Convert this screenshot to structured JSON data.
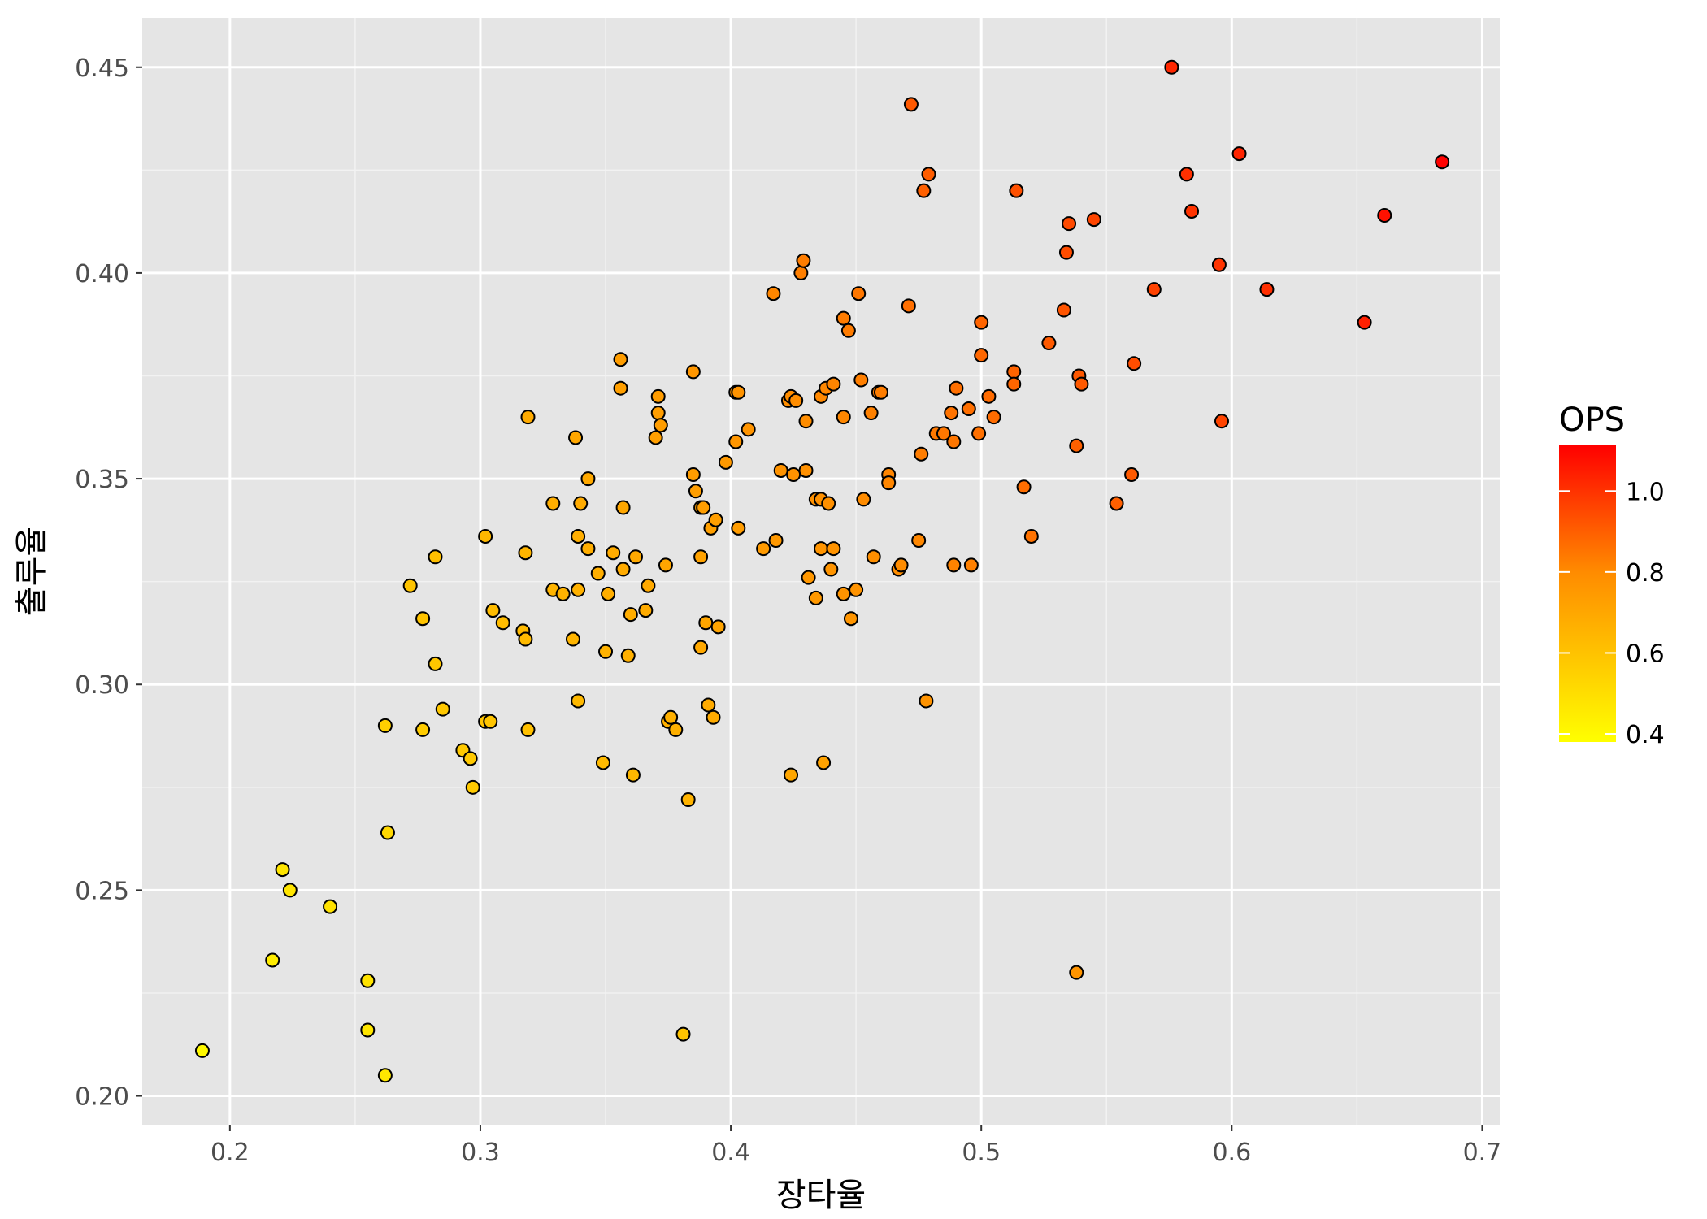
{
  "chart_data": {
    "type": "scatter",
    "xlabel": "장타율",
    "ylabel": "출루율",
    "xlim": [
      0.165,
      0.707
    ],
    "ylim": [
      0.193,
      0.462
    ],
    "x_ticks": [
      0.2,
      0.3,
      0.4,
      0.5,
      0.6,
      0.7
    ],
    "x_tick_labels": [
      "0.2",
      "0.3",
      "0.4",
      "0.5",
      "0.6",
      "0.7"
    ],
    "y_ticks": [
      0.2,
      0.25,
      0.3,
      0.35,
      0.4,
      0.45
    ],
    "y_tick_labels": [
      "0.20",
      "0.25",
      "0.30",
      "0.35",
      "0.40",
      "0.45"
    ],
    "grid": true,
    "panel_background": "#e5e5e5",
    "legend": {
      "title": "OPS",
      "placement": "right",
      "min": 0.38,
      "max": 1.113,
      "ticks": [
        1.0,
        0.8,
        0.6,
        0.4
      ],
      "tick_labels": [
        "1.0",
        "0.8",
        "0.6",
        "0.4"
      ],
      "low_color": "#ffff00",
      "mid_color": "#ff8c00",
      "high_color": "#ff0000"
    },
    "points": [
      [
        0.189,
        0.211
      ],
      [
        0.217,
        0.233
      ],
      [
        0.221,
        0.255
      ],
      [
        0.224,
        0.25
      ],
      [
        0.24,
        0.246
      ],
      [
        0.255,
        0.228
      ],
      [
        0.255,
        0.216
      ],
      [
        0.262,
        0.205
      ],
      [
        0.262,
        0.29
      ],
      [
        0.263,
        0.264
      ],
      [
        0.272,
        0.324
      ],
      [
        0.277,
        0.316
      ],
      [
        0.277,
        0.289
      ],
      [
        0.282,
        0.331
      ],
      [
        0.282,
        0.305
      ],
      [
        0.285,
        0.294
      ],
      [
        0.293,
        0.284
      ],
      [
        0.296,
        0.282
      ],
      [
        0.297,
        0.275
      ],
      [
        0.302,
        0.336
      ],
      [
        0.302,
        0.291
      ],
      [
        0.304,
        0.291
      ],
      [
        0.305,
        0.318
      ],
      [
        0.309,
        0.315
      ],
      [
        0.317,
        0.313
      ],
      [
        0.318,
        0.332
      ],
      [
        0.318,
        0.311
      ],
      [
        0.319,
        0.365
      ],
      [
        0.319,
        0.289
      ],
      [
        0.329,
        0.344
      ],
      [
        0.329,
        0.323
      ],
      [
        0.333,
        0.322
      ],
      [
        0.337,
        0.311
      ],
      [
        0.338,
        0.36
      ],
      [
        0.339,
        0.336
      ],
      [
        0.339,
        0.323
      ],
      [
        0.339,
        0.296
      ],
      [
        0.34,
        0.344
      ],
      [
        0.343,
        0.35
      ],
      [
        0.343,
        0.333
      ],
      [
        0.347,
        0.327
      ],
      [
        0.349,
        0.281
      ],
      [
        0.35,
        0.308
      ],
      [
        0.351,
        0.322
      ],
      [
        0.353,
        0.332
      ],
      [
        0.356,
        0.379
      ],
      [
        0.356,
        0.372
      ],
      [
        0.357,
        0.343
      ],
      [
        0.357,
        0.328
      ],
      [
        0.359,
        0.307
      ],
      [
        0.36,
        0.317
      ],
      [
        0.361,
        0.278
      ],
      [
        0.362,
        0.331
      ],
      [
        0.366,
        0.318
      ],
      [
        0.367,
        0.324
      ],
      [
        0.37,
        0.36
      ],
      [
        0.371,
        0.37
      ],
      [
        0.371,
        0.366
      ],
      [
        0.372,
        0.363
      ],
      [
        0.374,
        0.329
      ],
      [
        0.375,
        0.291
      ],
      [
        0.376,
        0.292
      ],
      [
        0.378,
        0.289
      ],
      [
        0.381,
        0.215
      ],
      [
        0.383,
        0.272
      ],
      [
        0.385,
        0.376
      ],
      [
        0.385,
        0.351
      ],
      [
        0.386,
        0.347
      ],
      [
        0.388,
        0.343
      ],
      [
        0.388,
        0.331
      ],
      [
        0.388,
        0.309
      ],
      [
        0.389,
        0.343
      ],
      [
        0.39,
        0.315
      ],
      [
        0.391,
        0.295
      ],
      [
        0.392,
        0.338
      ],
      [
        0.393,
        0.292
      ],
      [
        0.394,
        0.34
      ],
      [
        0.395,
        0.314
      ],
      [
        0.398,
        0.354
      ],
      [
        0.402,
        0.371
      ],
      [
        0.402,
        0.359
      ],
      [
        0.403,
        0.371
      ],
      [
        0.403,
        0.338
      ],
      [
        0.407,
        0.362
      ],
      [
        0.413,
        0.333
      ],
      [
        0.417,
        0.395
      ],
      [
        0.418,
        0.335
      ],
      [
        0.42,
        0.352
      ],
      [
        0.423,
        0.369
      ],
      [
        0.424,
        0.37
      ],
      [
        0.424,
        0.278
      ],
      [
        0.425,
        0.351
      ],
      [
        0.426,
        0.369
      ],
      [
        0.428,
        0.4
      ],
      [
        0.429,
        0.403
      ],
      [
        0.43,
        0.364
      ],
      [
        0.43,
        0.352
      ],
      [
        0.431,
        0.326
      ],
      [
        0.434,
        0.345
      ],
      [
        0.434,
        0.321
      ],
      [
        0.436,
        0.37
      ],
      [
        0.436,
        0.345
      ],
      [
        0.436,
        0.333
      ],
      [
        0.437,
        0.281
      ],
      [
        0.438,
        0.372
      ],
      [
        0.439,
        0.344
      ],
      [
        0.44,
        0.328
      ],
      [
        0.441,
        0.373
      ],
      [
        0.441,
        0.333
      ],
      [
        0.445,
        0.389
      ],
      [
        0.445,
        0.365
      ],
      [
        0.445,
        0.322
      ],
      [
        0.447,
        0.386
      ],
      [
        0.448,
        0.316
      ],
      [
        0.45,
        0.323
      ],
      [
        0.451,
        0.395
      ],
      [
        0.452,
        0.374
      ],
      [
        0.453,
        0.345
      ],
      [
        0.456,
        0.366
      ],
      [
        0.457,
        0.331
      ],
      [
        0.459,
        0.371
      ],
      [
        0.46,
        0.371
      ],
      [
        0.463,
        0.351
      ],
      [
        0.463,
        0.349
      ],
      [
        0.467,
        0.328
      ],
      [
        0.468,
        0.329
      ],
      [
        0.471,
        0.392
      ],
      [
        0.472,
        0.441
      ],
      [
        0.475,
        0.335
      ],
      [
        0.476,
        0.356
      ],
      [
        0.477,
        0.42
      ],
      [
        0.478,
        0.296
      ],
      [
        0.479,
        0.424
      ],
      [
        0.482,
        0.361
      ],
      [
        0.485,
        0.361
      ],
      [
        0.488,
        0.366
      ],
      [
        0.489,
        0.359
      ],
      [
        0.489,
        0.329
      ],
      [
        0.49,
        0.372
      ],
      [
        0.495,
        0.367
      ],
      [
        0.496,
        0.329
      ],
      [
        0.499,
        0.361
      ],
      [
        0.5,
        0.388
      ],
      [
        0.5,
        0.38
      ],
      [
        0.503,
        0.37
      ],
      [
        0.505,
        0.365
      ],
      [
        0.513,
        0.376
      ],
      [
        0.513,
        0.373
      ],
      [
        0.514,
        0.42
      ],
      [
        0.517,
        0.348
      ],
      [
        0.52,
        0.336
      ],
      [
        0.527,
        0.383
      ],
      [
        0.533,
        0.391
      ],
      [
        0.534,
        0.405
      ],
      [
        0.535,
        0.412
      ],
      [
        0.538,
        0.358
      ],
      [
        0.538,
        0.23
      ],
      [
        0.539,
        0.375
      ],
      [
        0.54,
        0.373
      ],
      [
        0.545,
        0.413
      ],
      [
        0.554,
        0.344
      ],
      [
        0.56,
        0.351
      ],
      [
        0.561,
        0.378
      ],
      [
        0.569,
        0.396
      ],
      [
        0.576,
        0.45
      ],
      [
        0.582,
        0.424
      ],
      [
        0.584,
        0.415
      ],
      [
        0.595,
        0.402
      ],
      [
        0.596,
        0.364
      ],
      [
        0.603,
        0.429
      ],
      [
        0.614,
        0.396
      ],
      [
        0.653,
        0.388
      ],
      [
        0.661,
        0.414
      ],
      [
        0.684,
        0.427
      ]
    ]
  }
}
